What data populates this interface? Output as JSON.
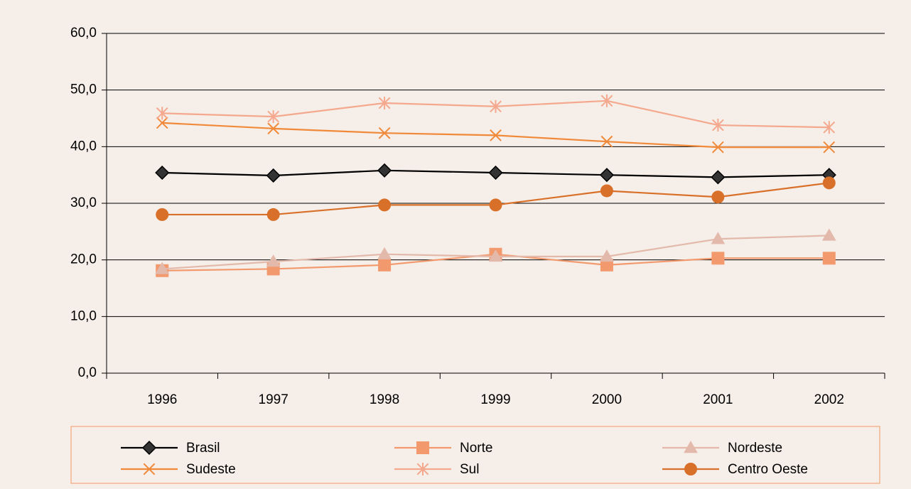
{
  "chart_data": {
    "type": "line",
    "categories": [
      "1996",
      "1997",
      "1998",
      "1999",
      "2000",
      "2001",
      "2002"
    ],
    "series": [
      {
        "name": "Brasil",
        "color": "#000000",
        "marker": "diamond",
        "values": [
          35.4,
          34.9,
          35.8,
          35.4,
          35.0,
          34.6,
          35.0
        ]
      },
      {
        "name": "Norte",
        "color": "#f29a6e",
        "marker": "square",
        "values": [
          18.1,
          18.4,
          19.1,
          21.0,
          19.1,
          20.3,
          20.3
        ]
      },
      {
        "name": "Nordeste",
        "color": "#e3b9ab",
        "marker": "triangle",
        "values": [
          18.4,
          19.7,
          21.0,
          20.6,
          20.6,
          23.7,
          24.3
        ]
      },
      {
        "name": "Sudeste",
        "color": "#f08a3a",
        "marker": "x",
        "values": [
          44.2,
          43.2,
          42.4,
          42.0,
          40.9,
          39.9,
          39.9
        ]
      },
      {
        "name": "Sul",
        "color": "#f4a88e",
        "marker": "star",
        "values": [
          45.9,
          45.3,
          47.7,
          47.1,
          48.1,
          43.8,
          43.4
        ]
      },
      {
        "name": "Centro Oeste",
        "color": "#d8702a",
        "marker": "circle",
        "values": [
          28.0,
          28.0,
          29.7,
          29.7,
          32.2,
          31.1,
          33.6
        ]
      }
    ],
    "ylim": [
      0,
      60
    ],
    "yticks": [
      {
        "value": 0,
        "label": "0,0"
      },
      {
        "value": 10,
        "label": "10,0"
      },
      {
        "value": 20,
        "label": "20,0"
      },
      {
        "value": 30,
        "label": "30,0"
      },
      {
        "value": 40,
        "label": "40,0"
      },
      {
        "value": 50,
        "label": "50,0"
      },
      {
        "value": 60,
        "label": "60,0"
      }
    ],
    "grid": true,
    "legend": "bottom"
  }
}
